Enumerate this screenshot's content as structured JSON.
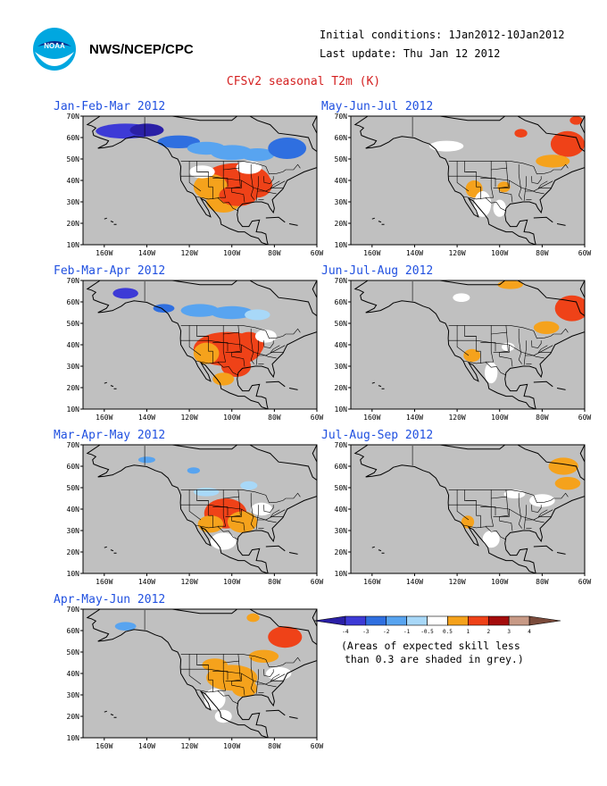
{
  "header": {
    "org": "NWS/NCEP/CPC",
    "initial_conditions": "Initial conditions: 1Jan2012-10Jan2012",
    "last_update": "Last update: Thu Jan 12 2012",
    "title": "CFSv2 seasonal T2m (K)",
    "logo_text": "NOAA"
  },
  "map_axes": {
    "lat_labels": [
      "70N",
      "60N",
      "50N",
      "40N",
      "30N",
      "20N",
      "10N"
    ],
    "lon_labels": [
      "160W",
      "140W",
      "120W",
      "100W",
      "80W",
      "60W"
    ]
  },
  "panels": [
    {
      "title": "Jan-Feb-Mar 2012",
      "anomaly": "strong warm US, cold Alaska/Canada"
    },
    {
      "title": "May-Jun-Jul 2012",
      "anomaly": "warm NE Canada"
    },
    {
      "title": "Feb-Mar-Apr 2012",
      "anomaly": "strong warm US, cold Canada"
    },
    {
      "title": "Jun-Jul-Aug 2012",
      "anomaly": "warm NE Canada"
    },
    {
      "title": "Mar-Apr-May 2012",
      "anomaly": "warm southern US"
    },
    {
      "title": "Jul-Aug-Sep 2012",
      "anomaly": "weak warm"
    },
    {
      "title": "Apr-May-Jun 2012",
      "anomaly": "warm central US and E Canada"
    }
  ],
  "legend": {
    "ticks": [
      "-4",
      "-3",
      "-2",
      "-1",
      "-0.5",
      "0.5",
      "1",
      "2",
      "3",
      "4"
    ],
    "colors": [
      "#2a1fa6",
      "#3d3ad6",
      "#2f6fe0",
      "#58a4f0",
      "#a8d8f8",
      "#ffffff",
      "#f5a21c",
      "#ef4218",
      "#a40c0c",
      "#c89a86",
      "#7a4a3a"
    ],
    "note_line1": "(Areas of expected skill less",
    "note_line2": "than 0.3 are shaded in grey.)"
  },
  "colors": {
    "grey": "#c0c0c0",
    "title_blue": "#2050e0",
    "title_red": "#d42020"
  }
}
